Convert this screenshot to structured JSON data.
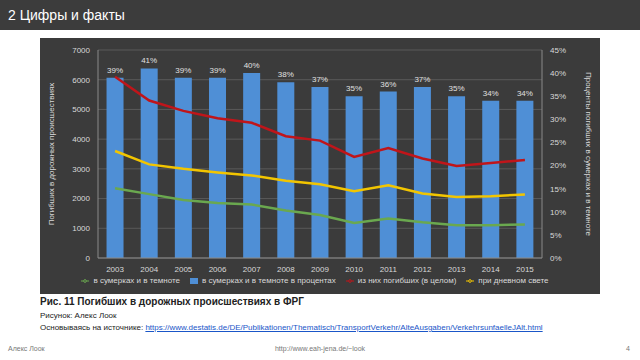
{
  "header": {
    "title": "2 Цифры и факты"
  },
  "chart_data": {
    "type": "bar",
    "categories": [
      "2003",
      "2004",
      "2005",
      "2006",
      "2007",
      "2008",
      "2009",
      "2010",
      "2011",
      "2012",
      "2013",
      "2014",
      "2015"
    ],
    "series": [
      {
        "name": "в сумерках и в темноте в процентах",
        "type": "bar",
        "axis": "y2",
        "color": "#4f8fd6",
        "values": [
          39,
          41,
          39,
          39,
          40,
          38,
          37,
          35,
          36,
          37,
          35,
          34,
          34
        ],
        "value_labels": [
          "39%",
          "41%",
          "39%",
          "39%",
          "40%",
          "38%",
          "37%",
          "35%",
          "36%",
          "37%",
          "35%",
          "34%",
          "34%"
        ]
      },
      {
        "name": "из них погибших (в целом)",
        "type": "line",
        "color": "#c0151a",
        "values": [
          6100,
          5300,
          4950,
          4700,
          4550,
          4100,
          3950,
          3400,
          3700,
          3350,
          3100,
          3200,
          3300
        ]
      },
      {
        "name": "при дневном свете",
        "type": "line",
        "color": "#f2c500",
        "values": [
          3600,
          3150,
          3000,
          2880,
          2780,
          2600,
          2480,
          2250,
          2450,
          2170,
          2050,
          2080,
          2140
        ]
      },
      {
        "name": "в сумерках и в темноте",
        "type": "line",
        "color": "#6aa84f",
        "values": [
          2350,
          2150,
          1950,
          1850,
          1800,
          1600,
          1450,
          1180,
          1330,
          1200,
          1100,
          1100,
          1130
        ]
      }
    ],
    "ylabel": "Погибших в дорожных происшествиях",
    "y2label": "Проценты погибших в сумерках и в темноте",
    "ylim": [
      0,
      7000
    ],
    "yticks": [
      0,
      1000,
      2000,
      3000,
      4000,
      5000,
      6000,
      7000
    ],
    "y2lim": [
      0,
      45
    ],
    "y2ticks": [
      {
        "value": 0,
        "label": "0%"
      },
      {
        "value": 5,
        "label": "5%"
      },
      {
        "value": 10,
        "label": "10%"
      },
      {
        "value": 15,
        "label": "15%"
      },
      {
        "value": 20,
        "label": "20%"
      },
      {
        "value": 25,
        "label": "25%"
      },
      {
        "value": 30,
        "label": "30%"
      },
      {
        "value": 35,
        "label": "35%"
      },
      {
        "value": 40,
        "label": "40%"
      },
      {
        "value": 45,
        "label": "45%"
      }
    ],
    "grid": true,
    "legend": "bottom",
    "data_labels": true
  },
  "caption": {
    "title": "Рис. 11 Погибших в дорожных происшествиях в ФРГ",
    "credit": "Рисунок: Алекс Лоок",
    "source_label": "Основываясь на источнике:",
    "source_url": "https://www.destatis.de/DE/Publikationen/Thematisch/TransportVerkehr/AlteAusgaben/VerkehrsunfaelleJAlt.html"
  },
  "footer": {
    "author": "Алекс Лоок",
    "url": "http://www.eah-jena.de/~look",
    "page": "4"
  }
}
